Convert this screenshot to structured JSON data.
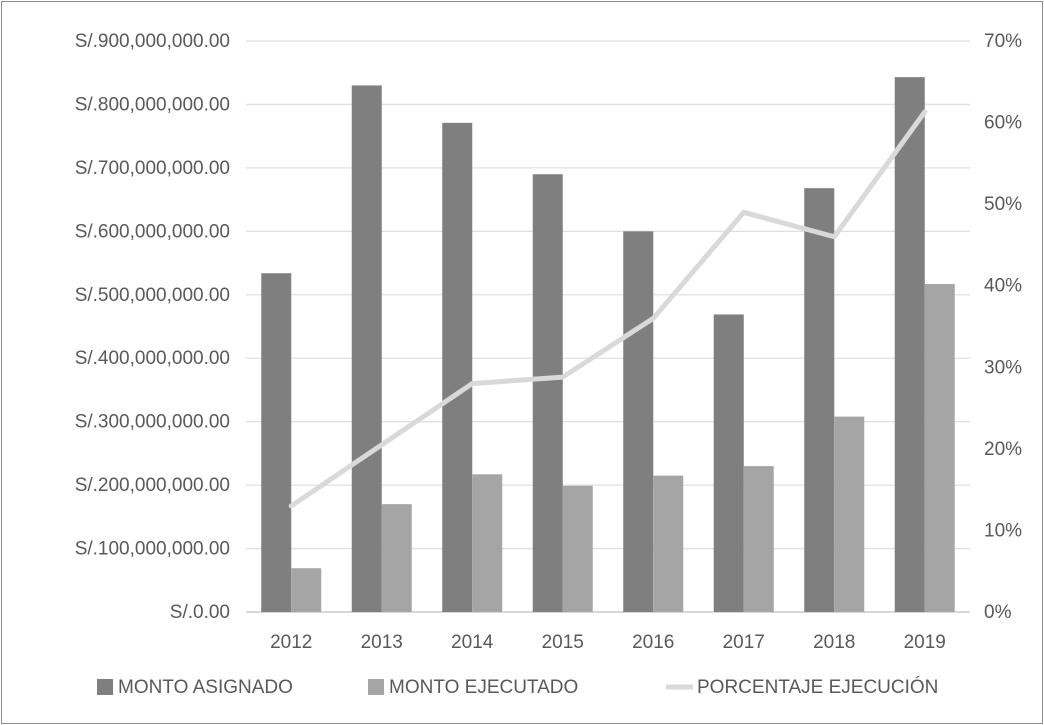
{
  "chart_data": {
    "type": "bar",
    "categories": [
      "2012",
      "2013",
      "2014",
      "2015",
      "2016",
      "2017",
      "2018",
      "2019"
    ],
    "series": [
      {
        "name": "MONTO ASIGNADO",
        "type": "bar",
        "axis": "left",
        "values": [
          534000000,
          830000000,
          771000000,
          690000000,
          600000000,
          469000000,
          668000000,
          843000000
        ],
        "color": "#7f7f7f"
      },
      {
        "name": "MONTO EJECUTADO",
        "type": "bar",
        "axis": "left",
        "values": [
          69000000,
          170000000,
          217000000,
          199000000,
          215000000,
          230000000,
          308000000,
          517000000
        ],
        "color": "#a5a5a5"
      },
      {
        "name": "PORCENTAJE EJECUCIÓN",
        "type": "line",
        "axis": "right",
        "values": [
          13,
          20.5,
          28,
          28.8,
          36,
          49,
          46,
          61.3
        ],
        "color": "#d9d9d9"
      }
    ],
    "y_left": {
      "lim": [
        0,
        900000000
      ],
      "ticks": [
        0,
        100000000,
        200000000,
        300000000,
        400000000,
        500000000,
        600000000,
        700000000,
        800000000,
        900000000
      ],
      "tick_labels": [
        "S/.0.00",
        "S/.100,000,000.00",
        "S/.200,000,000.00",
        "S/.300,000,000.00",
        "S/.400,000,000.00",
        "S/.500,000,000.00",
        "S/.600,000,000.00",
        "S/.700,000,000.00",
        "S/.800,000,000.00",
        "S/.900,000,000.00"
      ]
    },
    "y_right": {
      "lim": [
        0,
        70
      ],
      "tick_labels": [
        "0%",
        "10%",
        "20%",
        "30%",
        "40%",
        "50%",
        "60%",
        "70%"
      ]
    },
    "grid": true,
    "legend_position": "bottom",
    "title": "",
    "xlabel": "",
    "ylabel": ""
  }
}
